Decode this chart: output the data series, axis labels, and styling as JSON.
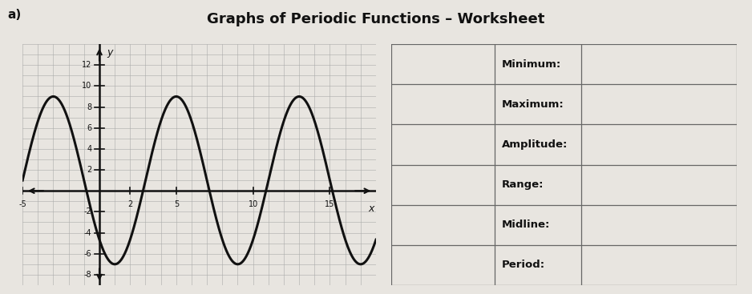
{
  "title": "Graphs of Periodic Functions – Worksheet",
  "label_a": "a)",
  "graph_xlim": [
    -5,
    18
  ],
  "graph_ylim": [
    -9,
    14
  ],
  "x_tick_positions": [
    -5,
    2,
    5,
    10,
    15
  ],
  "x_tick_labels": [
    "-5",
    "2",
    "5",
    "10",
    "15"
  ],
  "y_tick_positions": [
    -8,
    -6,
    -4,
    -2,
    2,
    4,
    6,
    8,
    10,
    12
  ],
  "y_tick_labels": [
    "-8",
    "-6",
    "-4",
    "-2",
    "2",
    "4",
    "6",
    "8",
    "10",
    "12"
  ],
  "amplitude": 8,
  "midline": 1,
  "period": 8,
  "min_at_x": 1,
  "bg_color": "#e8e5e0",
  "graph_bg": "#d8d5d0",
  "grid_color": "#aaaaaa",
  "line_color": "#111111",
  "table_labels": [
    "Minimum:",
    "Maximum:",
    "Amplitude:",
    "Range:",
    "Midline:",
    "Period:"
  ],
  "table_bg": "#e0ddd8",
  "table_border": "#666666",
  "title_fontsize": 13,
  "tick_fontsize": 7
}
